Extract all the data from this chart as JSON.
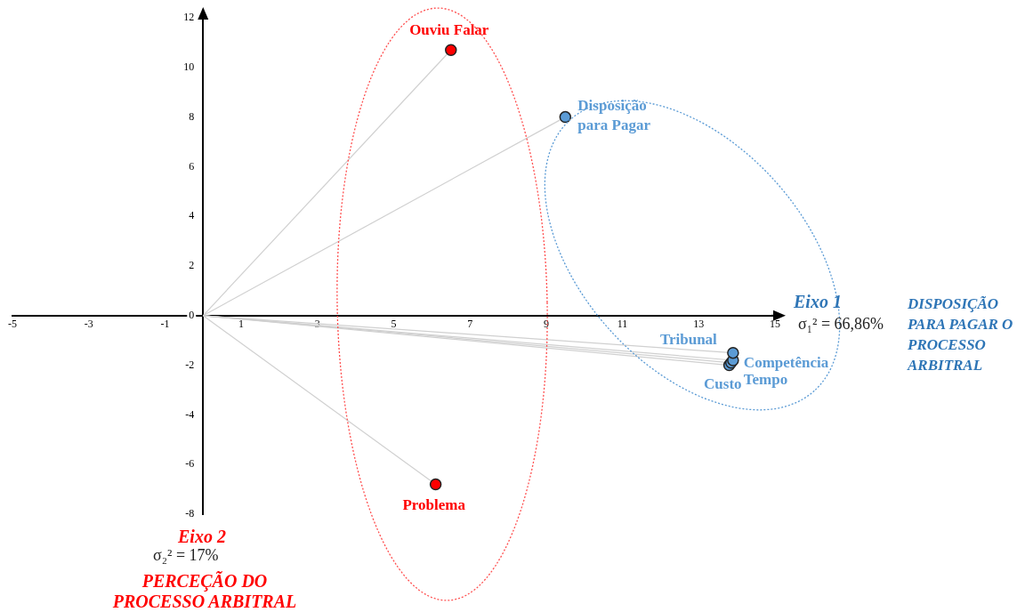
{
  "chart_data": {
    "type": "scatter",
    "xlim": [
      -5,
      15
    ],
    "xticks": [
      -5,
      -3,
      -1,
      1,
      3,
      5,
      7,
      9,
      11,
      13,
      15
    ],
    "ylim": [
      -8,
      12
    ],
    "yticks": [
      -8,
      -6,
      -4,
      -2,
      0,
      2,
      4,
      6,
      8,
      10,
      12
    ],
    "grid": false,
    "legend": false,
    "marker": "circle",
    "series": [
      {
        "name": "Ouviu Falar",
        "color": "#ff0000",
        "x": [
          6.5
        ],
        "values": [
          10.7
        ]
      },
      {
        "name": "Disposição para Pagar",
        "color": "#5b9bd5",
        "x": [
          9.5
        ],
        "values": [
          8
        ]
      },
      {
        "name": "Problema",
        "color": "#ff0000",
        "x": [
          6.1
        ],
        "values": [
          -6.8
        ]
      },
      {
        "name": "Tribunal",
        "color": "#5b9bd5",
        "x": [
          13.9
        ],
        "values": [
          -1.5
        ]
      },
      {
        "name": "Competência",
        "color": "#5b9bd5",
        "x": [
          13.9
        ],
        "values": [
          -1.8
        ]
      },
      {
        "name": "Tempo",
        "color": "#5b9bd5",
        "x": [
          13.85
        ],
        "values": [
          -1.9
        ]
      },
      {
        "name": "Custo",
        "color": "#5b9bd5",
        "x": [
          13.8
        ],
        "values": [
          -2
        ]
      }
    ],
    "annotations": [
      "Eixo 1",
      "σ₁² = 66,86%",
      "DISPOSIÇÃO PARA PAGAR O PROCESSO ARBITRAL",
      "Eixo 2",
      "σ₂² = 17%",
      "PERCEÇÃO DO PROCESSO ARBITRAL"
    ]
  }
}
